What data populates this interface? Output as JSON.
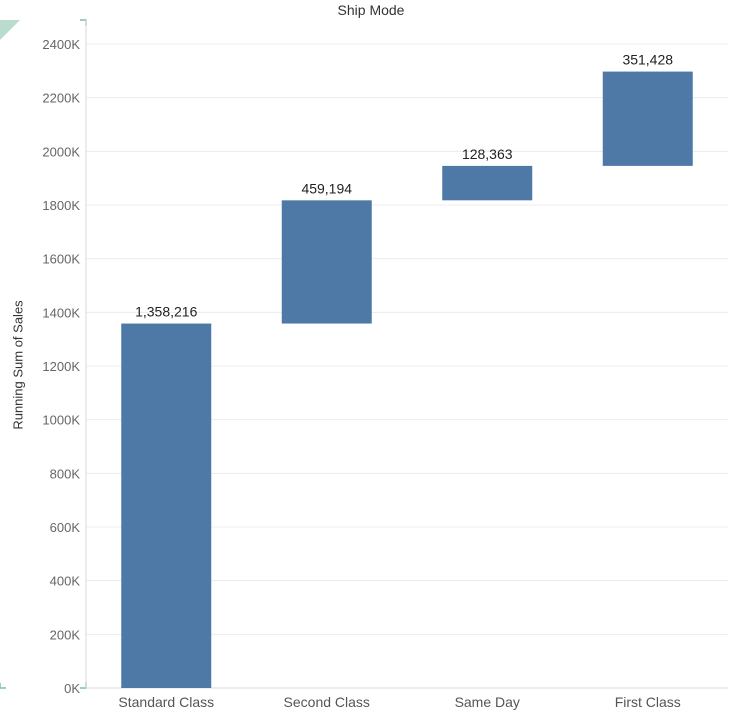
{
  "colors": {
    "bar": "#4e79a7",
    "gridline": "#ececec",
    "axis": "#d9d9d9",
    "corner_accent": "#7fbfa8"
  },
  "chart_data": {
    "type": "waterfall",
    "title": "Ship Mode",
    "ylabel": "Running Sum of Sales",
    "xlabel": "",
    "categories": [
      "Standard Class",
      "Second Class",
      "Same Day",
      "First Class"
    ],
    "values": [
      1358216,
      459194,
      128363,
      351428
    ],
    "data_labels": [
      "1,358,216",
      "459,194",
      "128,363",
      "351,428"
    ],
    "ylim": [
      0,
      2400000
    ],
    "yticks": [
      0,
      200000,
      400000,
      600000,
      800000,
      1000000,
      1200000,
      1400000,
      1600000,
      1800000,
      2000000,
      2200000,
      2400000
    ],
    "ytick_labels": [
      "0K",
      "200K",
      "400K",
      "600K",
      "800K",
      "1000K",
      "1200K",
      "1400K",
      "1600K",
      "1800K",
      "2000K",
      "2200K",
      "2400K"
    ],
    "grid": true
  }
}
